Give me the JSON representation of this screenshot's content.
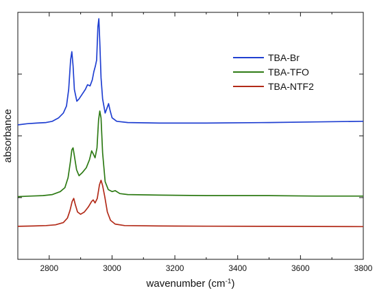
{
  "chart_data": {
    "type": "line",
    "title": "",
    "xlabel": "wavenumber (cm",
    "xlabel_sup": "-1",
    "xlabel_suffix": ")",
    "ylabel": "absorbance",
    "xlim": [
      2700,
      3800
    ],
    "xticks": [
      2800,
      3000,
      3200,
      3400,
      3600,
      3800
    ],
    "yticks_labeled": false,
    "grid": false,
    "legend_position": "top-right",
    "series": [
      {
        "name": "TBA-Br",
        "color": "#1f3fd1",
        "baseline": 0.02,
        "points": [
          [
            2700,
            0.0
          ],
          [
            2730,
            0.01
          ],
          [
            2760,
            0.015
          ],
          [
            2790,
            0.02
          ],
          [
            2810,
            0.03
          ],
          [
            2830,
            0.06
          ],
          [
            2845,
            0.1
          ],
          [
            2855,
            0.16
          ],
          [
            2862,
            0.3
          ],
          [
            2868,
            0.55
          ],
          [
            2872,
            0.62
          ],
          [
            2876,
            0.5
          ],
          [
            2880,
            0.3
          ],
          [
            2888,
            0.2
          ],
          [
            2895,
            0.22
          ],
          [
            2905,
            0.26
          ],
          [
            2915,
            0.3
          ],
          [
            2922,
            0.34
          ],
          [
            2930,
            0.33
          ],
          [
            2937,
            0.38
          ],
          [
            2942,
            0.45
          ],
          [
            2947,
            0.5
          ],
          [
            2951,
            0.55
          ],
          [
            2955,
            0.83
          ],
          [
            2958,
            0.9
          ],
          [
            2961,
            0.7
          ],
          [
            2965,
            0.4
          ],
          [
            2970,
            0.22
          ],
          [
            2978,
            0.1
          ],
          [
            2985,
            0.15
          ],
          [
            2989,
            0.18
          ],
          [
            2994,
            0.12
          ],
          [
            3000,
            0.06
          ],
          [
            3015,
            0.03
          ],
          [
            3050,
            0.02
          ],
          [
            3150,
            0.015
          ],
          [
            3300,
            0.015
          ],
          [
            3500,
            0.02
          ],
          [
            3650,
            0.025
          ],
          [
            3800,
            0.03
          ]
        ]
      },
      {
        "name": "TBA-TFO",
        "color": "#2d7a14",
        "baseline": 0.02,
        "points": [
          [
            2700,
            0.01
          ],
          [
            2740,
            0.015
          ],
          [
            2780,
            0.02
          ],
          [
            2810,
            0.03
          ],
          [
            2835,
            0.06
          ],
          [
            2850,
            0.1
          ],
          [
            2860,
            0.2
          ],
          [
            2867,
            0.35
          ],
          [
            2872,
            0.48
          ],
          [
            2876,
            0.5
          ],
          [
            2880,
            0.42
          ],
          [
            2887,
            0.28
          ],
          [
            2895,
            0.22
          ],
          [
            2905,
            0.25
          ],
          [
            2918,
            0.3
          ],
          [
            2928,
            0.38
          ],
          [
            2935,
            0.47
          ],
          [
            2940,
            0.44
          ],
          [
            2946,
            0.4
          ],
          [
            2952,
            0.5
          ],
          [
            2957,
            0.78
          ],
          [
            2961,
            0.87
          ],
          [
            2965,
            0.8
          ],
          [
            2970,
            0.45
          ],
          [
            2978,
            0.16
          ],
          [
            2988,
            0.08
          ],
          [
            3000,
            0.06
          ],
          [
            3010,
            0.07
          ],
          [
            3025,
            0.04
          ],
          [
            3050,
            0.03
          ],
          [
            3150,
            0.025
          ],
          [
            3300,
            0.02
          ],
          [
            3500,
            0.02
          ],
          [
            3650,
            0.015
          ],
          [
            3800,
            0.015
          ]
        ]
      },
      {
        "name": "TBA-NTF2",
        "color": "#b22a18",
        "baseline": 0.01,
        "points": [
          [
            2700,
            0.01
          ],
          [
            2750,
            0.015
          ],
          [
            2790,
            0.02
          ],
          [
            2820,
            0.03
          ],
          [
            2845,
            0.06
          ],
          [
            2858,
            0.12
          ],
          [
            2866,
            0.22
          ],
          [
            2873,
            0.34
          ],
          [
            2878,
            0.38
          ],
          [
            2883,
            0.3
          ],
          [
            2890,
            0.2
          ],
          [
            2900,
            0.17
          ],
          [
            2912,
            0.2
          ],
          [
            2925,
            0.27
          ],
          [
            2935,
            0.34
          ],
          [
            2940,
            0.36
          ],
          [
            2946,
            0.32
          ],
          [
            2953,
            0.38
          ],
          [
            2960,
            0.56
          ],
          [
            2965,
            0.62
          ],
          [
            2970,
            0.55
          ],
          [
            2977,
            0.4
          ],
          [
            2985,
            0.2
          ],
          [
            2995,
            0.09
          ],
          [
            3010,
            0.04
          ],
          [
            3040,
            0.02
          ],
          [
            3150,
            0.015
          ],
          [
            3300,
            0.012
          ],
          [
            3500,
            0.01
          ],
          [
            3650,
            0.008
          ],
          [
            3800,
            0.006
          ]
        ]
      }
    ]
  }
}
